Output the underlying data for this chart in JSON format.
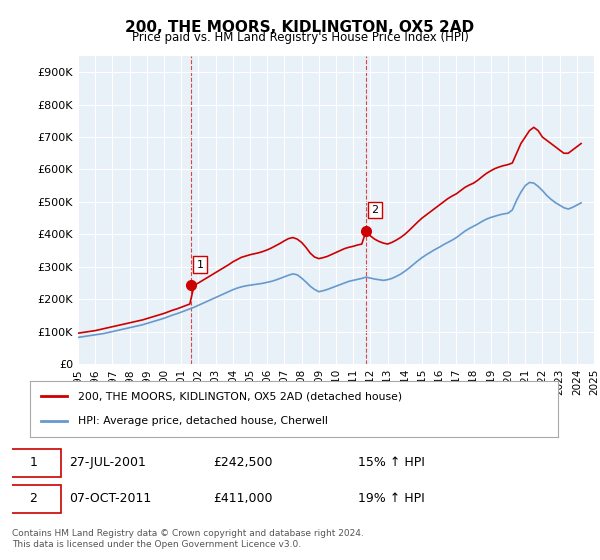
{
  "title": "200, THE MOORS, KIDLINGTON, OX5 2AD",
  "subtitle": "Price paid vs. HM Land Registry's House Price Index (HPI)",
  "ylabel": "",
  "ylim": [
    0,
    950000
  ],
  "yticks": [
    0,
    100000,
    200000,
    300000,
    400000,
    500000,
    600000,
    700000,
    800000,
    900000
  ],
  "ytick_labels": [
    "£0",
    "£100K",
    "£200K",
    "£300K",
    "£400K",
    "£500K",
    "£600K",
    "£700K",
    "£800K",
    "£900K"
  ],
  "background_color": "#e8f0f8",
  "plot_bg_color": "#e8f0f8",
  "red_color": "#cc0000",
  "blue_color": "#6699cc",
  "grid_color": "#ffffff",
  "marker1_x": 2001.58,
  "marker1_y": 242500,
  "marker1_label": "1",
  "marker2_x": 2011.77,
  "marker2_y": 411000,
  "marker2_label": "2",
  "vline1_x": 2001.58,
  "vline2_x": 2011.77,
  "legend_line1": "200, THE MOORS, KIDLINGTON, OX5 2AD (detached house)",
  "legend_line2": "HPI: Average price, detached house, Cherwell",
  "table_row1": [
    "1",
    "27-JUL-2001",
    "£242,500",
    "15% ↑ HPI"
  ],
  "table_row2": [
    "2",
    "07-OCT-2011",
    "£411,000",
    "19% ↑ HPI"
  ],
  "footer": "Contains HM Land Registry data © Crown copyright and database right 2024.\nThis data is licensed under the Open Government Licence v3.0.",
  "red_x": [
    1995.0,
    1995.25,
    1995.5,
    1995.75,
    1996.0,
    1996.25,
    1996.5,
    1996.75,
    1997.0,
    1997.25,
    1997.5,
    1997.75,
    1998.0,
    1998.25,
    1998.5,
    1998.75,
    1999.0,
    1999.25,
    1999.5,
    1999.75,
    2000.0,
    2000.25,
    2000.5,
    2000.75,
    2001.0,
    2001.25,
    2001.5,
    2001.75,
    2002.0,
    2002.25,
    2002.5,
    2002.75,
    2003.0,
    2003.25,
    2003.5,
    2003.75,
    2004.0,
    2004.25,
    2004.5,
    2004.75,
    2005.0,
    2005.25,
    2005.5,
    2005.75,
    2006.0,
    2006.25,
    2006.5,
    2006.75,
    2007.0,
    2007.25,
    2007.5,
    2007.75,
    2008.0,
    2008.25,
    2008.5,
    2008.75,
    2009.0,
    2009.25,
    2009.5,
    2009.75,
    2010.0,
    2010.25,
    2010.5,
    2010.75,
    2011.0,
    2011.25,
    2011.5,
    2011.75,
    2012.0,
    2012.25,
    2012.5,
    2012.75,
    2013.0,
    2013.25,
    2013.5,
    2013.75,
    2014.0,
    2014.25,
    2014.5,
    2014.75,
    2015.0,
    2015.25,
    2015.5,
    2015.75,
    2016.0,
    2016.25,
    2016.5,
    2016.75,
    2017.0,
    2017.25,
    2017.5,
    2017.75,
    2018.0,
    2018.25,
    2018.5,
    2018.75,
    2019.0,
    2019.25,
    2019.5,
    2019.75,
    2020.0,
    2020.25,
    2020.5,
    2020.75,
    2021.0,
    2021.25,
    2021.5,
    2021.75,
    2022.0,
    2022.25,
    2022.5,
    2022.75,
    2023.0,
    2023.25,
    2023.5,
    2023.75,
    2024.0,
    2024.25
  ],
  "red_y": [
    95000,
    97000,
    99000,
    101000,
    103000,
    106000,
    109000,
    112000,
    115000,
    118000,
    121000,
    124000,
    127000,
    130000,
    133000,
    136000,
    140000,
    144000,
    148000,
    152000,
    156000,
    161000,
    166000,
    170000,
    175000,
    180000,
    185000,
    242500,
    250000,
    258000,
    266000,
    274000,
    282000,
    290000,
    298000,
    306000,
    315000,
    322000,
    329000,
    333000,
    337000,
    340000,
    343000,
    347000,
    352000,
    358000,
    365000,
    372000,
    380000,
    387000,
    390000,
    385000,
    375000,
    360000,
    342000,
    330000,
    325000,
    328000,
    332000,
    338000,
    344000,
    350000,
    356000,
    360000,
    363000,
    367000,
    370000,
    411000,
    395000,
    385000,
    378000,
    373000,
    370000,
    375000,
    382000,
    390000,
    400000,
    412000,
    425000,
    438000,
    450000,
    460000,
    470000,
    480000,
    490000,
    500000,
    510000,
    518000,
    525000,
    535000,
    545000,
    552000,
    558000,
    567000,
    578000,
    588000,
    596000,
    603000,
    608000,
    612000,
    615000,
    620000,
    650000,
    680000,
    700000,
    720000,
    730000,
    720000,
    700000,
    690000,
    680000,
    670000,
    660000,
    650000,
    650000,
    660000,
    670000,
    680000
  ],
  "blue_x": [
    1995.0,
    1995.25,
    1995.5,
    1995.75,
    1996.0,
    1996.25,
    1996.5,
    1996.75,
    1997.0,
    1997.25,
    1997.5,
    1997.75,
    1998.0,
    1998.25,
    1998.5,
    1998.75,
    1999.0,
    1999.25,
    1999.5,
    1999.75,
    2000.0,
    2000.25,
    2000.5,
    2000.75,
    2001.0,
    2001.25,
    2001.5,
    2001.75,
    2002.0,
    2002.25,
    2002.5,
    2002.75,
    2003.0,
    2003.25,
    2003.5,
    2003.75,
    2004.0,
    2004.25,
    2004.5,
    2004.75,
    2005.0,
    2005.25,
    2005.5,
    2005.75,
    2006.0,
    2006.25,
    2006.5,
    2006.75,
    2007.0,
    2007.25,
    2007.5,
    2007.75,
    2008.0,
    2008.25,
    2008.5,
    2008.75,
    2009.0,
    2009.25,
    2009.5,
    2009.75,
    2010.0,
    2010.25,
    2010.5,
    2010.75,
    2011.0,
    2011.25,
    2011.5,
    2011.75,
    2012.0,
    2012.25,
    2012.5,
    2012.75,
    2013.0,
    2013.25,
    2013.5,
    2013.75,
    2014.0,
    2014.25,
    2014.5,
    2014.75,
    2015.0,
    2015.25,
    2015.5,
    2015.75,
    2016.0,
    2016.25,
    2016.5,
    2016.75,
    2017.0,
    2017.25,
    2017.5,
    2017.75,
    2018.0,
    2018.25,
    2018.5,
    2018.75,
    2019.0,
    2019.25,
    2019.5,
    2019.75,
    2020.0,
    2020.25,
    2020.5,
    2020.75,
    2021.0,
    2021.25,
    2021.5,
    2021.75,
    2022.0,
    2022.25,
    2022.5,
    2022.75,
    2023.0,
    2023.25,
    2023.5,
    2023.75,
    2024.0,
    2024.25
  ],
  "blue_y": [
    82000,
    84000,
    86000,
    88000,
    90000,
    92000,
    94000,
    97000,
    100000,
    103000,
    106000,
    109000,
    112000,
    115000,
    118000,
    121000,
    125000,
    129000,
    133000,
    137000,
    141000,
    146000,
    151000,
    155000,
    160000,
    165000,
    170000,
    175000,
    181000,
    187000,
    193000,
    199000,
    205000,
    211000,
    217000,
    223000,
    229000,
    234000,
    238000,
    241000,
    243000,
    245000,
    247000,
    249000,
    252000,
    255000,
    259000,
    264000,
    269000,
    274000,
    278000,
    275000,
    265000,
    253000,
    240000,
    230000,
    223000,
    226000,
    230000,
    235000,
    240000,
    245000,
    250000,
    255000,
    258000,
    261000,
    264000,
    268000,
    265000,
    262000,
    260000,
    258000,
    260000,
    264000,
    270000,
    277000,
    286000,
    296000,
    307000,
    318000,
    328000,
    337000,
    345000,
    353000,
    360000,
    368000,
    375000,
    382000,
    390000,
    400000,
    410000,
    418000,
    425000,
    432000,
    440000,
    447000,
    452000,
    456000,
    460000,
    463000,
    465000,
    475000,
    505000,
    530000,
    550000,
    560000,
    558000,
    548000,
    535000,
    520000,
    508000,
    498000,
    490000,
    482000,
    478000,
    483000,
    490000,
    497000
  ],
  "xmin": 1995.0,
  "xmax": 2024.5,
  "xticks": [
    1995,
    1996,
    1997,
    1998,
    1999,
    2000,
    2001,
    2002,
    2003,
    2004,
    2005,
    2006,
    2007,
    2008,
    2009,
    2010,
    2011,
    2012,
    2013,
    2014,
    2015,
    2016,
    2017,
    2018,
    2019,
    2020,
    2021,
    2022,
    2023,
    2024,
    2025
  ]
}
